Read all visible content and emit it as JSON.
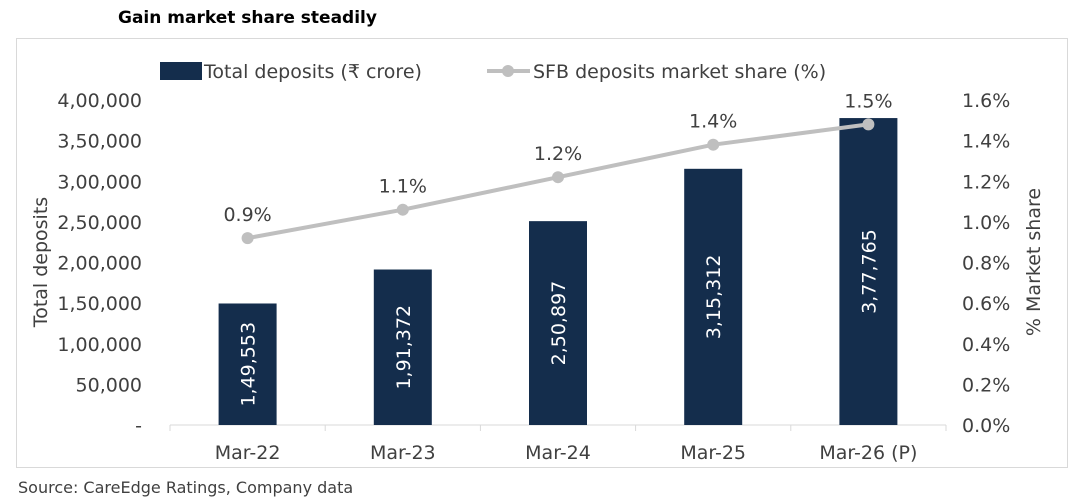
{
  "title": "Gain market share steadily",
  "source": "Source: CareEdge Ratings, Company data",
  "colors": {
    "bar": "#142d4c",
    "line": "#bfbfbf",
    "point": "#bfbfbf",
    "axis": "#d9d9d9",
    "text": "#404040"
  },
  "chart_data": {
    "type": "bar",
    "categories": [
      "Mar-22",
      "Mar-23",
      "Mar-24",
      "Mar-25",
      "Mar-26 (P)"
    ],
    "series": [
      {
        "name": "Total deposits (₹ crore)",
        "type": "bar",
        "axis": "left",
        "values": [
          149553,
          191372,
          250897,
          315312,
          377765
        ],
        "labels": [
          "1,49,553",
          "1,91,372",
          "2,50,897",
          "3,15,312",
          "3,77,765"
        ]
      },
      {
        "name": "SFB deposits market share (%)",
        "type": "line",
        "axis": "right",
        "values": [
          0.92,
          1.06,
          1.22,
          1.38,
          1.48
        ],
        "labels": [
          "0.9%",
          "1.1%",
          "1.2%",
          "1.4%",
          "1.5%"
        ]
      }
    ],
    "ylabel": "Total deposits",
    "ylim": [
      0,
      400000
    ],
    "yticks": [
      "-",
      "50,000",
      "1,00,000",
      "1,50,000",
      "2,00,000",
      "2,50,000",
      "3,00,000",
      "3,50,000",
      "4,00,000"
    ],
    "y2label": "% Market share",
    "y2lim": [
      0,
      1.6
    ],
    "y2ticks": [
      "0.0%",
      "0.2%",
      "0.4%",
      "0.6%",
      "0.8%",
      "1.0%",
      "1.2%",
      "1.4%",
      "1.6%"
    ],
    "legend_position": "top",
    "grid": false
  }
}
